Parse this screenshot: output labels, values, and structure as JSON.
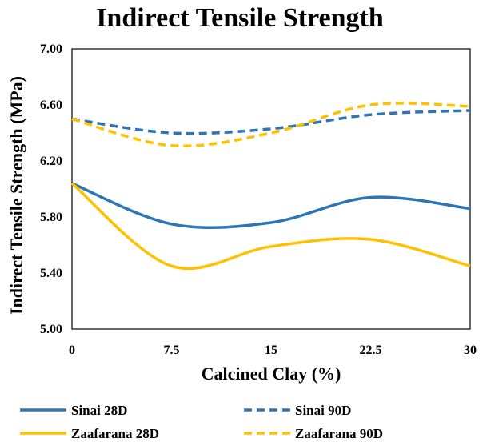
{
  "chart_data": {
    "type": "line",
    "title": "Indirect Tensile Strength",
    "xlabel": "Calcined Clay (%)",
    "ylabel": "Indirect Tensile Strength (MPa)",
    "xlim": [
      0,
      30
    ],
    "ylim": [
      5.0,
      7.0
    ],
    "x_ticks": [
      "0",
      "7.5",
      "15",
      "22.5",
      "30"
    ],
    "y_ticks": [
      "5.00",
      "5.40",
      "5.80",
      "6.20",
      "6.60",
      "7.00"
    ],
    "grid": false,
    "legend_position": "bottom",
    "x": [
      0,
      7.5,
      15,
      22.5,
      30
    ],
    "series": [
      {
        "name": "Sinai 28D",
        "values": [
          6.04,
          5.75,
          5.76,
          5.94,
          5.86
        ],
        "color": "#2E75B6",
        "dash": "solid"
      },
      {
        "name": "Sinai 90D",
        "values": [
          6.5,
          6.4,
          6.43,
          6.53,
          6.56
        ],
        "color": "#2E75B6",
        "dash": "dashed"
      },
      {
        "name": "Zaafarana 28D",
        "values": [
          6.04,
          5.45,
          5.59,
          5.64,
          5.45
        ],
        "color": "#FFC000",
        "dash": "solid"
      },
      {
        "name": "Zaafarana 90D",
        "values": [
          6.5,
          6.31,
          6.4,
          6.6,
          6.59
        ],
        "color": "#FFC000",
        "dash": "dashed"
      }
    ]
  }
}
